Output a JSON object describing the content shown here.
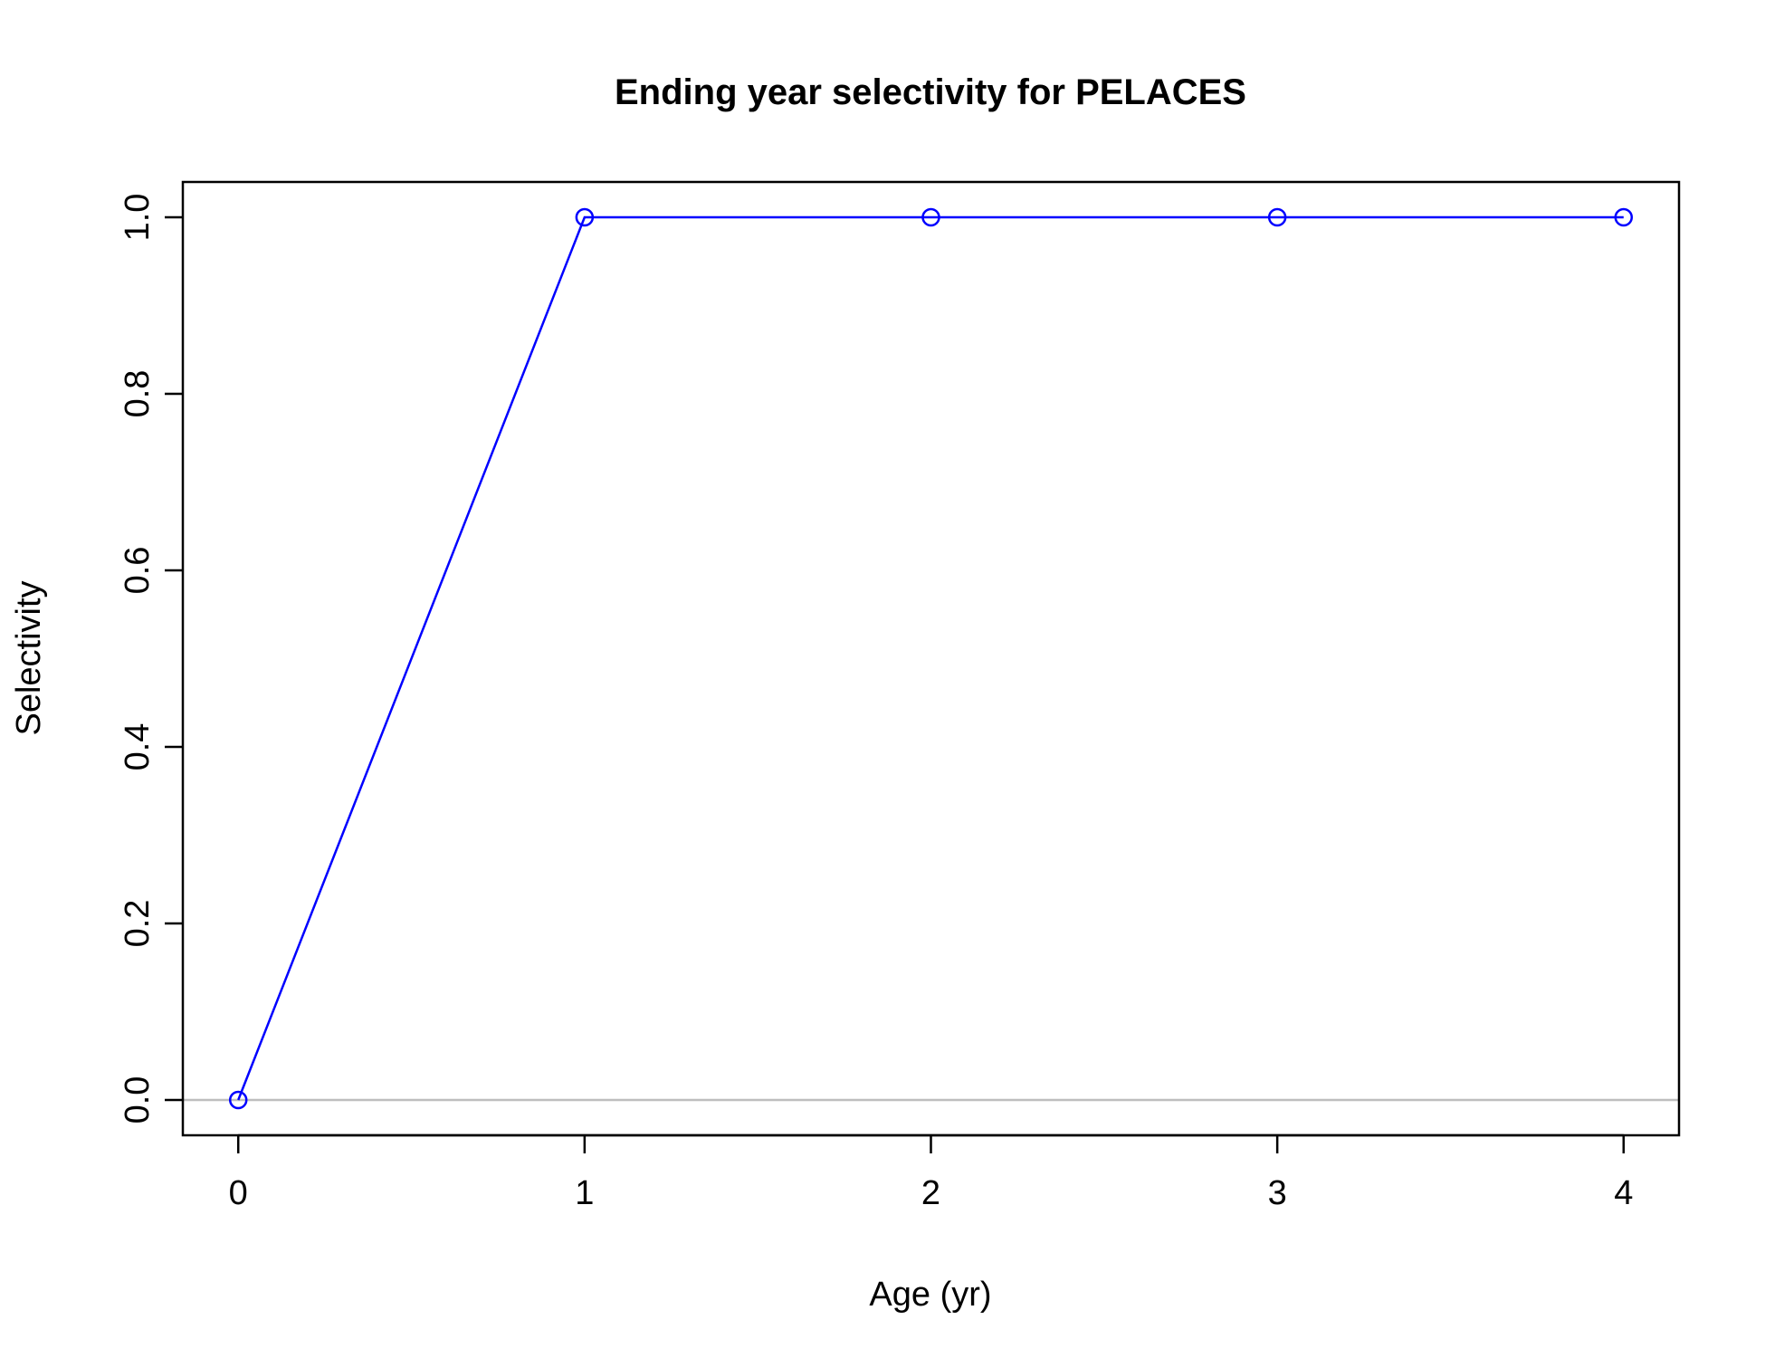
{
  "chart_data": {
    "type": "line",
    "title": "Ending year selectivity for PELACES",
    "xlabel": "Age (yr)",
    "ylabel": "Selectivity",
    "x": [
      0,
      1,
      2,
      3,
      4
    ],
    "series": [
      {
        "values": [
          0.0,
          1.0,
          1.0,
          1.0,
          1.0
        ],
        "color": "#0000ff",
        "marker": "open-circle"
      }
    ],
    "xticks": [
      "0",
      "1",
      "2",
      "3",
      "4"
    ],
    "yticks": [
      "0.0",
      "0.2",
      "0.4",
      "0.6",
      "0.8",
      "1.0"
    ],
    "xlim": [
      -0.16,
      4.16
    ],
    "ylim": [
      -0.04,
      1.04
    ],
    "reference_line": {
      "y": 0,
      "color": "#bebebe"
    },
    "grid": false,
    "legend": "none"
  }
}
